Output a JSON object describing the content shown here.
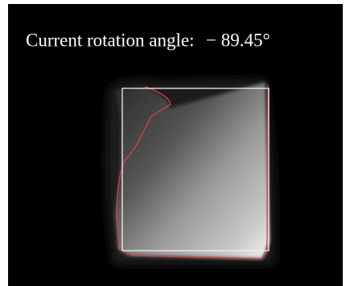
{
  "caption": {
    "label": "Current rotation angle:",
    "angle": "− 89.45°"
  }
}
